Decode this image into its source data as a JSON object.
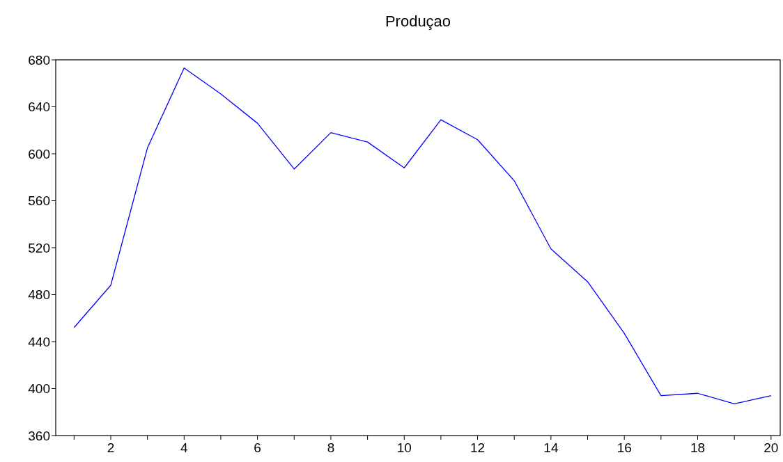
{
  "chart_data": {
    "type": "line",
    "title": "Produçao",
    "x": [
      1,
      2,
      3,
      4,
      5,
      6,
      7,
      8,
      9,
      10,
      11,
      12,
      13,
      14,
      15,
      16,
      17,
      18,
      19,
      20
    ],
    "series": [
      {
        "color": "#0000ff",
        "values": [
          452,
          488,
          605,
          673,
          651,
          626,
          587,
          618,
          610,
          588,
          629,
          612,
          577,
          519,
          491,
          447,
          394,
          396,
          387,
          394
        ]
      }
    ],
    "xlim": [
      0.5,
      20.25
    ],
    "xticks": [
      {
        "value": 1,
        "label": null
      },
      2,
      {
        "value": 3,
        "label": null
      },
      4,
      {
        "value": 5,
        "label": null
      },
      6,
      {
        "value": 7,
        "label": null
      },
      8,
      {
        "value": 9,
        "label": null
      },
      10,
      {
        "value": 11,
        "label": null
      },
      12,
      {
        "value": 13,
        "label": null
      },
      14,
      {
        "value": 15,
        "label": null
      },
      16,
      {
        "value": 17,
        "label": null
      },
      18,
      {
        "value": 19,
        "label": null
      },
      20
    ],
    "ylim": [
      360,
      680
    ],
    "yticks": [
      360,
      400,
      440,
      480,
      520,
      560,
      600,
      640,
      680
    ],
    "grid": false,
    "marker": "none",
    "line_style": "solid"
  }
}
